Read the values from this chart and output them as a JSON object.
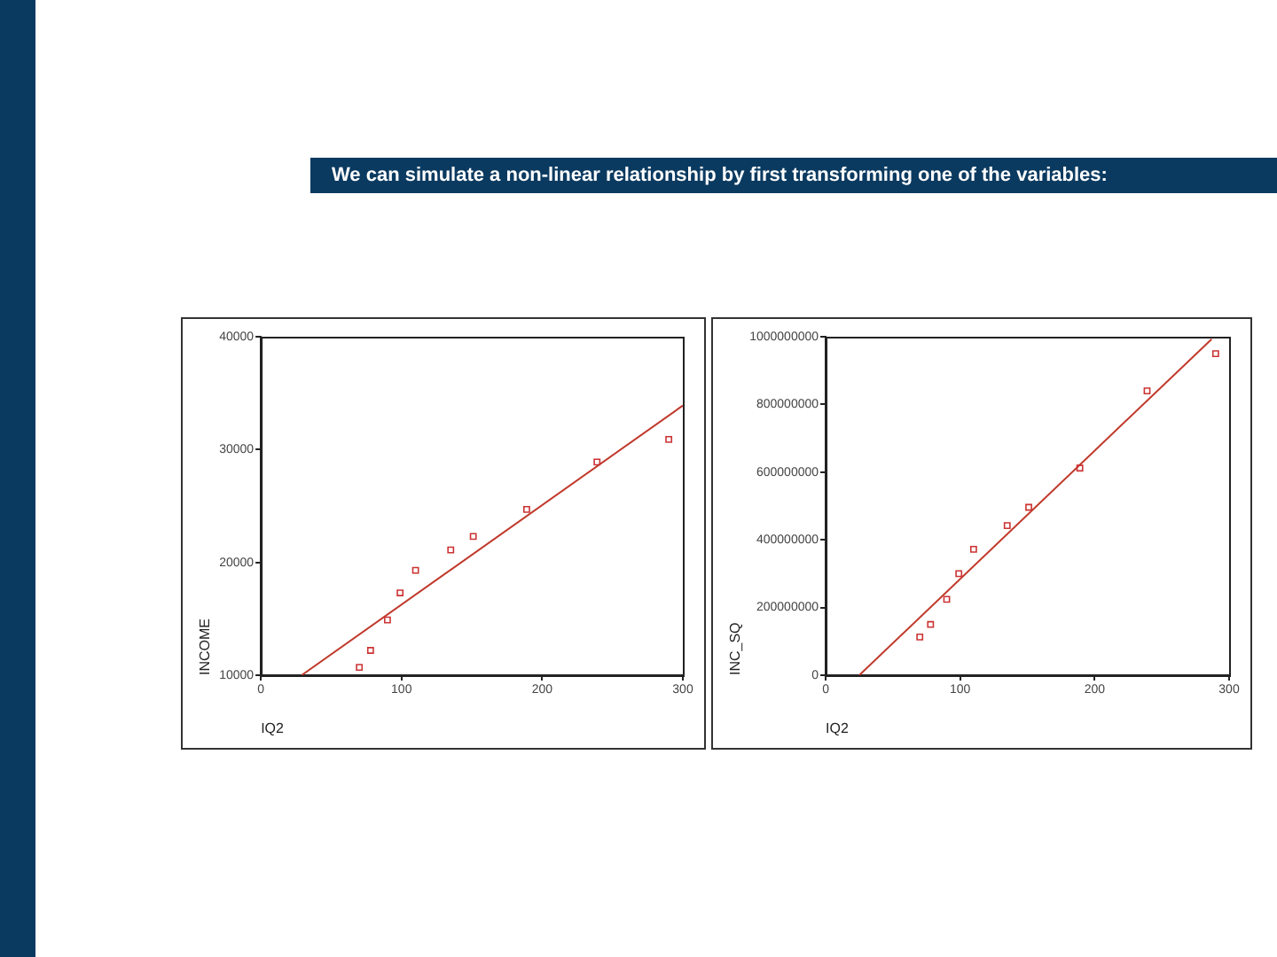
{
  "chart_data": [
    {
      "type": "scatter",
      "title": "We can simulate a non-linear relationship by first transforming one of the variables:",
      "xlabel": "IQ2",
      "ylabel": "INCOME",
      "xlim": [
        0,
        300
      ],
      "xticks": [
        0,
        100,
        200,
        300
      ],
      "ylim": [
        10000,
        40000
      ],
      "yticks": [
        10000,
        20000,
        30000,
        40000
      ],
      "grid": false,
      "series": [
        {
          "type": "scatter",
          "marker": "square",
          "color": "#cc3333",
          "x": [
            70,
            78,
            90,
            99,
            110,
            135,
            151,
            189,
            239,
            290
          ],
          "values": [
            10700,
            12200,
            14900,
            17300,
            19300,
            21100,
            22300,
            24700,
            28900,
            30900
          ]
        },
        {
          "type": "line",
          "color": "#c0392b",
          "x": [
            29,
            300
          ],
          "values": [
            10000,
            33900
          ]
        }
      ]
    },
    {
      "type": "scatter",
      "xlabel": "IQ2",
      "ylabel": "INC_SQ",
      "xlim": [
        0,
        300
      ],
      "xticks": [
        0,
        100,
        200,
        300
      ],
      "ylim": [
        0,
        1000000000
      ],
      "yticks": [
        0,
        200000000,
        400000000,
        600000000,
        800000000,
        1000000000
      ],
      "grid": false,
      "series": [
        {
          "type": "scatter",
          "marker": "square",
          "color": "#cc3333",
          "x": [
            70,
            78,
            90,
            99,
            110,
            135,
            151,
            189,
            239,
            290
          ],
          "values": [
            113000000,
            150000000,
            224000000,
            300000000,
            372000000,
            442000000,
            496000000,
            612000000,
            840000000,
            950000000
          ]
        },
        {
          "type": "line",
          "color": "#c0392b",
          "x": [
            25,
            287
          ],
          "values": [
            0,
            993000000
          ]
        }
      ]
    }
  ]
}
